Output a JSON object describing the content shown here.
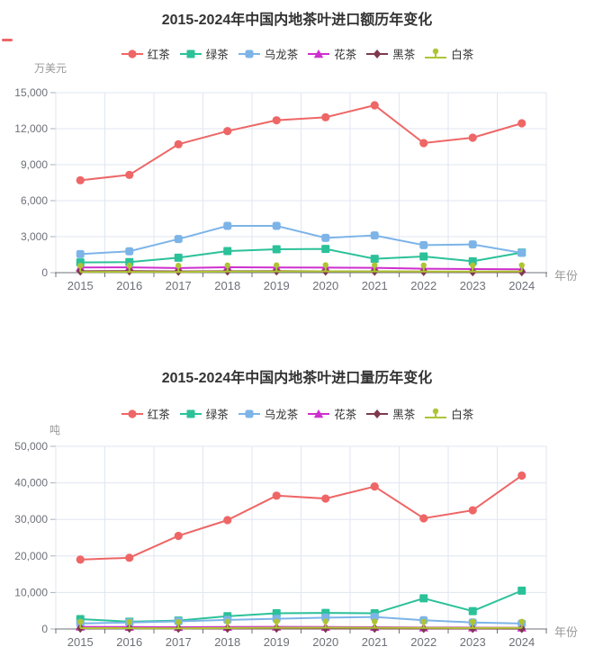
{
  "decor": {
    "stray_dash_color": "#ee6666"
  },
  "axis_style": {
    "grid_color": "#e0e6f1",
    "axis_color": "#6e7079",
    "label_color": "#6e7079"
  },
  "chart_data": [
    {
      "type": "line",
      "title": "2015-2024年中国内地茶叶进口额历年变化",
      "y_unit": "万美元",
      "x_unit": "年份",
      "categories": [
        "2015",
        "2016",
        "2017",
        "2018",
        "2019",
        "2020",
        "2021",
        "2022",
        "2023",
        "2024"
      ],
      "ylim": [
        0,
        15000
      ],
      "yticks": [
        0,
        3000,
        6000,
        9000,
        12000,
        15000
      ],
      "grid": true,
      "legend_position": "top",
      "series": [
        {
          "name": "红茶",
          "color": "#ee6666",
          "symbol": "circle",
          "values": [
            7700,
            8150,
            10700,
            11800,
            12700,
            12950,
            13950,
            10800,
            11250,
            12450
          ]
        },
        {
          "name": "绿茶",
          "color": "#2bc199",
          "symbol": "square",
          "values": [
            850,
            880,
            1250,
            1800,
            1950,
            1980,
            1150,
            1350,
            950,
            1680
          ]
        },
        {
          "name": "乌龙茶",
          "color": "#7db4e8",
          "symbol": "roundRect",
          "values": [
            1550,
            1780,
            2800,
            3900,
            3900,
            2900,
            3100,
            2300,
            2350,
            1650
          ]
        },
        {
          "name": "花茶",
          "color": "#ce2fce",
          "symbol": "triangle",
          "values": [
            430,
            440,
            380,
            450,
            430,
            420,
            400,
            330,
            300,
            280
          ]
        },
        {
          "name": "黑茶",
          "color": "#7d3a4c",
          "symbol": "diamond",
          "values": [
            120,
            130,
            100,
            120,
            130,
            110,
            100,
            80,
            70,
            70
          ]
        },
        {
          "name": "白茶",
          "color": "#afc433",
          "symbol": "pin",
          "values": [
            60,
            70,
            60,
            90,
            100,
            110,
            100,
            90,
            90,
            100
          ]
        }
      ]
    },
    {
      "type": "line",
      "title": "2015-2024年中国内地茶叶进口量历年变化",
      "y_unit": "吨",
      "x_unit": "年份",
      "categories": [
        "2015",
        "2016",
        "2017",
        "2018",
        "2019",
        "2020",
        "2021",
        "2022",
        "2023",
        "2024"
      ],
      "ylim": [
        0,
        50000
      ],
      "yticks": [
        0,
        10000,
        20000,
        30000,
        40000,
        50000
      ],
      "grid": true,
      "legend_position": "top",
      "series": [
        {
          "name": "红茶",
          "color": "#ee6666",
          "symbol": "circle",
          "values": [
            19000,
            19500,
            25500,
            29800,
            36500,
            35700,
            39000,
            30300,
            32500,
            42000
          ]
        },
        {
          "name": "绿茶",
          "color": "#2bc199",
          "symbol": "square",
          "values": [
            2700,
            2000,
            2300,
            3500,
            4300,
            4400,
            4300,
            8400,
            4900,
            10500
          ]
        },
        {
          "name": "乌龙茶",
          "color": "#7db4e8",
          "symbol": "roundRect",
          "values": [
            1500,
            1800,
            2100,
            2500,
            2800,
            3100,
            3300,
            2400,
            1800,
            1500
          ]
        },
        {
          "name": "花茶",
          "color": "#ce2fce",
          "symbol": "triangle",
          "values": [
            600,
            550,
            500,
            550,
            600,
            550,
            500,
            400,
            380,
            350
          ]
        },
        {
          "name": "黑茶",
          "color": "#7d3a4c",
          "symbol": "diamond",
          "values": [
            200,
            180,
            150,
            160,
            180,
            160,
            140,
            120,
            110,
            100
          ]
        },
        {
          "name": "白茶",
          "color": "#afc433",
          "symbol": "pin",
          "values": [
            250,
            230,
            200,
            280,
            350,
            380,
            350,
            300,
            280,
            300
          ]
        }
      ]
    }
  ]
}
